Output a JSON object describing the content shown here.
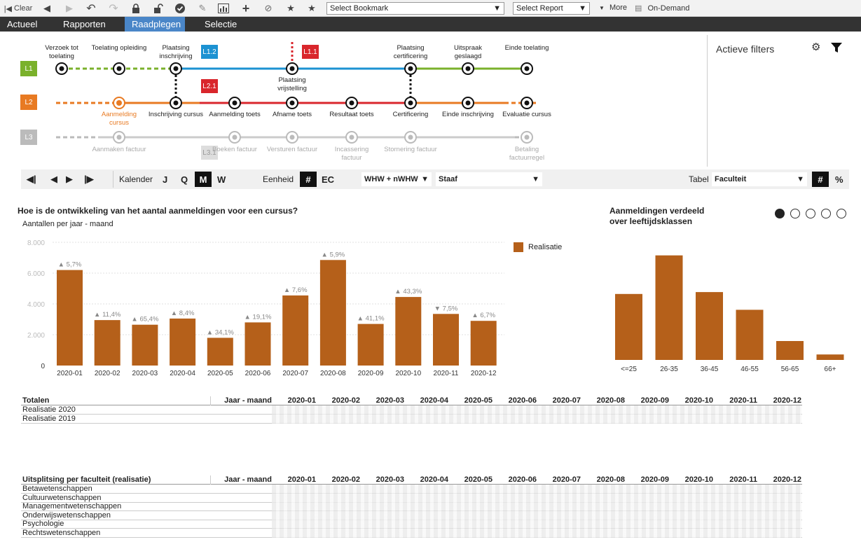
{
  "toolbar": {
    "clear_label": "Clear",
    "bookmark_placeholder": "Select Bookmark",
    "report_placeholder": "Select Report",
    "more_label": "More",
    "ondemand_label": "On-Demand"
  },
  "menu": [
    "Actueel",
    "Rapporten",
    "Raadplegen",
    "Selectie"
  ],
  "lanes": [
    {
      "label": "L1",
      "color": "#7ab12b"
    },
    {
      "label": "L2",
      "color": "#e87a22"
    },
    {
      "label": "L3",
      "color": "#bbbbbb"
    }
  ],
  "flow": {
    "l1_nodes": [
      "Verzoek tot toelating",
      "Toelating opleiding",
      "Plaatsing inschrijving",
      "Plaatsing vrijstelling",
      "Plaatsing certificering",
      "Uitspraak geslaagd",
      "Einde toelating"
    ],
    "l2_nodes": [
      "Aanmelding cursus",
      "Inschrijving cursus",
      "Aanmelding toets",
      "Afname toets",
      "Resultaat toets",
      "Certificering",
      "Einde inschrijving",
      "Evaluatie cursus"
    ],
    "l3_nodes": [
      "Aanmaken factuur",
      "Boeken factuur",
      "Versturen factuur",
      "Incassering factuur",
      "Stornering factuur",
      "Betaling factuurregel"
    ],
    "tags": {
      "l12": "L1.2",
      "l11": "L1.1",
      "l21": "L2.1",
      "l31": "L3.1"
    }
  },
  "filters": {
    "title": "Actieve filters"
  },
  "controls": {
    "kalender": "Kalender",
    "periods": [
      "J",
      "Q",
      "M",
      "W"
    ],
    "eenheid": "Eenheid",
    "hash": "#",
    "ec": "EC",
    "measure": "WHW + nWHW",
    "charttype": "Staaf",
    "tabel": "Tabel",
    "tabel_value": "Faculteit",
    "pct": "%"
  },
  "chart1": {
    "title": "Hoe is de ontwikkeling van het aantal aanmeldingen voor een cursus?",
    "subtitle": "Aantallen per jaar - maand",
    "legend": "Realisatie",
    "chart_data": {
      "type": "bar",
      "categories": [
        "2020-01",
        "2020-02",
        "2020-03",
        "2020-04",
        "2020-05",
        "2020-06",
        "2020-07",
        "2020-08",
        "2020-09",
        "2020-10",
        "2020-11",
        "2020-12"
      ],
      "values": [
        6200,
        2950,
        2650,
        3050,
        1800,
        2800,
        4550,
        6850,
        2700,
        4450,
        3350,
        2900
      ],
      "ylim": [
        0,
        8000
      ],
      "yticks": [
        "0",
        "2.000",
        "4.000",
        "6.000",
        "8.000"
      ],
      "changes": [
        "▲ 5,7%",
        "▲ 11,4%",
        "▲ 65,4%",
        "▲ 8,4%",
        "▲ 34,1%",
        "▲ 19,1%",
        "▲ 7,6%",
        "▲ 5,9%",
        "▲ 41,1%",
        "▲ 43,3%",
        "▼ 7,5%",
        "▲ 6,7%"
      ],
      "color": "#b5601a"
    }
  },
  "chart2": {
    "title_line1": "Aanmeldingen verdeeld",
    "title_line2": "over leeftijdsklassen",
    "chart_data": {
      "type": "bar",
      "categories": [
        "<=25",
        "26-35",
        "36-45",
        "46-55",
        "56-65",
        "66+"
      ],
      "values": [
        9420,
        14931,
        9690,
        7160,
        2700,
        780
      ],
      "ylim": [
        0,
        16500
      ],
      "color": "#b5601a"
    }
  },
  "totals_table": {
    "header": "Totalen",
    "dim": "Jaar - maand",
    "columns": [
      "2020-01",
      "2020-02",
      "2020-03",
      "2020-04",
      "2020-05",
      "2020-06",
      "2020-07",
      "2020-08",
      "2020-09",
      "2020-10",
      "2020-11",
      "2020-12"
    ],
    "rows": [
      "Realisatie 2020",
      "Realisatie 2019"
    ]
  },
  "faculty_table": {
    "header": "Uitsplitsing per faculteit (realisatie)",
    "dim": "Jaar - maand",
    "columns": [
      "2020-01",
      "2020-02",
      "2020-03",
      "2020-04",
      "2020-05",
      "2020-06",
      "2020-07",
      "2020-08",
      "2020-09",
      "2020-10",
      "2020-11",
      "2020-12"
    ],
    "rows": [
      "Betawetenschappen",
      "Cultuurwetenschappen",
      "Managementwetenschappen",
      "Onderwijswetenschappen",
      "Psychologie",
      "Rechtswetenschappen"
    ]
  }
}
